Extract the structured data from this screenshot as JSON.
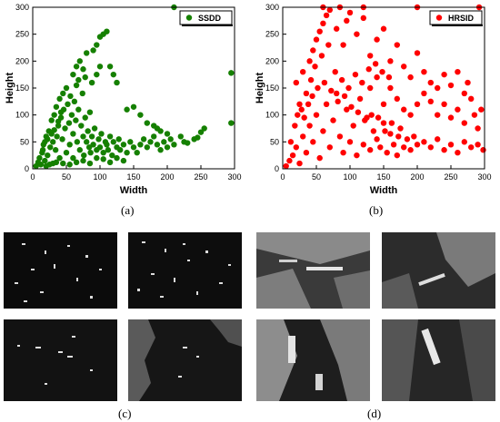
{
  "chart_data": [
    {
      "type": "scatter",
      "xlabel": "Width",
      "ylabel": "Height",
      "xlim": [
        0,
        300
      ],
      "ylim": [
        0,
        300
      ],
      "xticks": [
        "0",
        "50",
        "100",
        "150",
        "200",
        "250",
        "300"
      ],
      "yticks": [
        "0",
        "50",
        "100",
        "150",
        "200",
        "250",
        "300"
      ],
      "legend": "top-right",
      "series": [
        {
          "name": "SSDD",
          "color": "#158000",
          "points": [
            [
              5,
              5
            ],
            [
              8,
              12
            ],
            [
              10,
              20
            ],
            [
              12,
              8
            ],
            [
              14,
              30
            ],
            [
              16,
              45
            ],
            [
              18,
              15
            ],
            [
              20,
              60
            ],
            [
              22,
              25
            ],
            [
              24,
              70
            ],
            [
              26,
              40
            ],
            [
              28,
              90
            ],
            [
              30,
              10
            ],
            [
              30,
              50
            ],
            [
              32,
              100
            ],
            [
              34,
              35
            ],
            [
              35,
              115
            ],
            [
              36,
              60
            ],
            [
              38,
              80
            ],
            [
              40,
              20
            ],
            [
              40,
              130
            ],
            [
              42,
              95
            ],
            [
              44,
              55
            ],
            [
              45,
              140
            ],
            [
              46,
              110
            ],
            [
              48,
              75
            ],
            [
              50,
              30
            ],
            [
              50,
              150
            ],
            [
              52,
              120
            ],
            [
              54,
              85
            ],
            [
              55,
              45
            ],
            [
              56,
              135
            ],
            [
              58,
              100
            ],
            [
              60,
              65
            ],
            [
              60,
              20
            ],
            [
              62,
              125
            ],
            [
              64,
              90
            ],
            [
              65,
              155
            ],
            [
              66,
              50
            ],
            [
              68,
              110
            ],
            [
              70,
              35
            ],
            [
              72,
              80
            ],
            [
              74,
              140
            ],
            [
              75,
              60
            ],
            [
              76,
              25
            ],
            [
              78,
              95
            ],
            [
              80,
              50
            ],
            [
              82,
              70
            ],
            [
              84,
              40
            ],
            [
              85,
              105
            ],
            [
              86,
              30
            ],
            [
              88,
              60
            ],
            [
              90,
              45
            ],
            [
              92,
              75
            ],
            [
              95,
              35
            ],
            [
              98,
              55
            ],
            [
              100,
              40
            ],
            [
              102,
              65
            ],
            [
              105,
              30
            ],
            [
              108,
              50
            ],
            [
              110,
              45
            ],
            [
              112,
              35
            ],
            [
              115,
              60
            ],
            [
              118,
              25
            ],
            [
              120,
              50
            ],
            [
              125,
              40
            ],
            [
              128,
              55
            ],
            [
              130,
              35
            ],
            [
              135,
              45
            ],
            [
              140,
              30
            ],
            [
              145,
              50
            ],
            [
              150,
              40
            ],
            [
              155,
              30
            ],
            [
              160,
              45
            ],
            [
              165,
              55
            ],
            [
              170,
              40
            ],
            [
              175,
              50
            ],
            [
              180,
              60
            ],
            [
              185,
              45
            ],
            [
              190,
              35
            ],
            [
              195,
              50
            ],
            [
              200,
              40
            ],
            [
              205,
              55
            ],
            [
              210,
              45
            ],
            [
              220,
              60
            ],
            [
              225,
              50
            ],
            [
              230,
              48
            ],
            [
              60,
              175
            ],
            [
              65,
              190
            ],
            [
              70,
              200
            ],
            [
              75,
              185
            ],
            [
              80,
              215
            ],
            [
              90,
              220
            ],
            [
              95,
              230
            ],
            [
              100,
              245
            ],
            [
              105,
              250
            ],
            [
              110,
              255
            ],
            [
              115,
              190
            ],
            [
              120,
              175
            ],
            [
              125,
              160
            ],
            [
              100,
              190
            ],
            [
              95,
              175
            ],
            [
              88,
              160
            ],
            [
              78,
              170
            ],
            [
              68,
              165
            ],
            [
              140,
              110
            ],
            [
              150,
              115
            ],
            [
              160,
              100
            ],
            [
              170,
              85
            ],
            [
              180,
              80
            ],
            [
              185,
              75
            ],
            [
              190,
              70
            ],
            [
              200,
              65
            ],
            [
              210,
              300
            ],
            [
              295,
              178
            ],
            [
              295,
              85
            ],
            [
              255,
              75
            ],
            [
              250,
              68
            ],
            [
              245,
              58
            ],
            [
              240,
              55
            ],
            [
              45,
              10
            ],
            [
              55,
              8
            ],
            [
              65,
              12
            ],
            [
              75,
              15
            ],
            [
              85,
              10
            ],
            [
              95,
              20
            ],
            [
              105,
              18
            ],
            [
              115,
              12
            ],
            [
              125,
              20
            ],
            [
              135,
              15
            ],
            [
              20,
              5
            ],
            [
              25,
              8
            ],
            [
              35,
              12
            ],
            [
              15,
              35
            ],
            [
              18,
              50
            ],
            [
              22,
              55
            ],
            [
              28,
              65
            ],
            [
              32,
              72
            ],
            [
              38,
              88
            ],
            [
              42,
              105
            ]
          ]
        },
        {
          "name": "HRSID",
          "color": "#ff0000",
          "points": [
            [
              5,
              5
            ],
            [
              10,
              15
            ],
            [
              15,
              25
            ],
            [
              20,
              40
            ],
            [
              25,
              10
            ],
            [
              30,
              60
            ],
            [
              35,
              30
            ],
            [
              40,
              80
            ],
            [
              45,
              50
            ],
            [
              50,
              100
            ],
            [
              55,
              20
            ],
            [
              60,
              70
            ],
            [
              65,
              120
            ],
            [
              70,
              40
            ],
            [
              75,
              90
            ],
            [
              80,
              140
            ],
            [
              85,
              60
            ],
            [
              90,
              30
            ],
            [
              95,
              110
            ],
            [
              100,
              50
            ],
            [
              105,
              80
            ],
            [
              110,
              25
            ],
            [
              115,
              130
            ],
            [
              120,
              45
            ],
            [
              125,
              95
            ],
            [
              130,
              35
            ],
            [
              135,
              70
            ],
            [
              140,
              55
            ],
            [
              145,
              40
            ],
            [
              150,
              85
            ],
            [
              155,
              30
            ],
            [
              160,
              65
            ],
            [
              165,
              45
            ],
            [
              170,
              25
            ],
            [
              175,
              75
            ],
            [
              180,
              40
            ],
            [
              185,
              55
            ],
            [
              190,
              35
            ],
            [
              195,
              60
            ],
            [
              200,
              45
            ],
            [
              210,
              50
            ],
            [
              220,
              40
            ],
            [
              230,
              55
            ],
            [
              240,
              35
            ],
            [
              250,
              45
            ],
            [
              260,
              30
            ],
            [
              270,
              50
            ],
            [
              280,
              40
            ],
            [
              290,
              45
            ],
            [
              298,
              35
            ],
            [
              20,
              160
            ],
            [
              30,
              180
            ],
            [
              40,
              200
            ],
            [
              45,
              220
            ],
            [
              50,
              240
            ],
            [
              55,
              255
            ],
            [
              60,
              270
            ],
            [
              65,
              285
            ],
            [
              70,
              295
            ],
            [
              80,
              260
            ],
            [
              90,
              230
            ],
            [
              95,
              275
            ],
            [
              100,
              290
            ],
            [
              110,
              250
            ],
            [
              120,
              280
            ],
            [
              130,
              210
            ],
            [
              140,
              240
            ],
            [
              150,
              260
            ],
            [
              160,
              200
            ],
            [
              170,
              230
            ],
            [
              180,
              190
            ],
            [
              190,
              170
            ],
            [
              200,
              215
            ],
            [
              210,
              180
            ],
            [
              220,
              160
            ],
            [
              230,
              150
            ],
            [
              240,
              175
            ],
            [
              250,
              155
            ],
            [
              260,
              180
            ],
            [
              270,
              140
            ],
            [
              275,
              160
            ],
            [
              280,
              130
            ],
            [
              285,
              100
            ],
            [
              290,
              75
            ],
            [
              295,
              110
            ],
            [
              240,
              120
            ],
            [
              250,
              95
            ],
            [
              260,
              110
            ],
            [
              270,
              85
            ],
            [
              230,
              100
            ],
            [
              220,
              125
            ],
            [
              210,
              140
            ],
            [
              200,
              120
            ],
            [
              190,
              100
            ],
            [
              180,
              110
            ],
            [
              170,
              130
            ],
            [
              160,
              150
            ],
            [
              150,
              120
            ],
            [
              140,
              170
            ],
            [
              130,
              150
            ],
            [
              60,
              300
            ],
            [
              85,
              300
            ],
            [
              200,
              300
            ],
            [
              292,
              300
            ],
            [
              120,
              300
            ],
            [
              25,
              120
            ],
            [
              35,
              140
            ],
            [
              42,
              165
            ],
            [
              48,
              190
            ],
            [
              58,
              210
            ],
            [
              68,
              230
            ],
            [
              78,
              180
            ],
            [
              88,
              165
            ],
            [
              98,
              150
            ],
            [
              108,
              175
            ],
            [
              118,
              160
            ],
            [
              128,
              185
            ],
            [
              138,
              195
            ],
            [
              148,
              180
            ],
            [
              158,
              170
            ],
            [
              12,
              50
            ],
            [
              18,
              80
            ],
            [
              22,
              100
            ],
            [
              28,
              110
            ],
            [
              32,
              95
            ],
            [
              38,
              120
            ],
            [
              44,
              135
            ],
            [
              52,
              150
            ],
            [
              62,
              160
            ],
            [
              72,
              145
            ],
            [
              82,
              125
            ],
            [
              92,
              135
            ],
            [
              102,
              115
            ],
            [
              112,
              105
            ],
            [
              122,
              90
            ],
            [
              132,
              100
            ],
            [
              142,
              95
            ],
            [
              152,
              70
            ],
            [
              162,
              85
            ],
            [
              172,
              60
            ]
          ]
        }
      ]
    }
  ],
  "captions": {
    "a": "(a)",
    "b": "(b)",
    "c": "(c)",
    "d": "(d)"
  }
}
